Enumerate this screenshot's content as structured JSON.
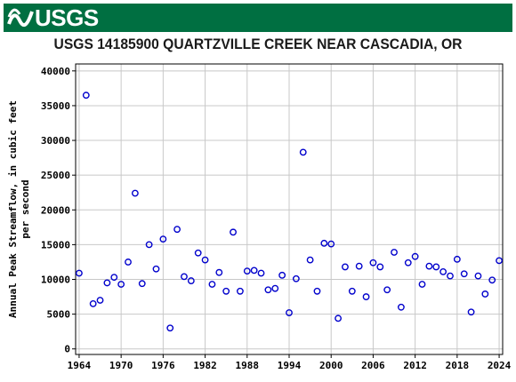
{
  "header": {
    "logo_text": "USGS",
    "logo_icon": "usgs-wave-icon",
    "brand_color": "#006f41"
  },
  "chart_data": {
    "type": "scatter",
    "title": "USGS 14185900 QUARTZVILLE CREEK NEAR CASCADIA, OR",
    "xlabel": "",
    "ylabel_lines": [
      "Annual Peak Streamflow, in cubic feet",
      "per second"
    ],
    "xlim": [
      1963.5,
      2024.5
    ],
    "ylim": [
      -800,
      41000
    ],
    "xticks": [
      1964,
      1970,
      1976,
      1982,
      1988,
      1994,
      2000,
      2006,
      2012,
      2018,
      2024
    ],
    "yticks": [
      0,
      5000,
      10000,
      15000,
      20000,
      25000,
      30000,
      35000,
      40000
    ],
    "grid": true,
    "marker_color": "#0000cc",
    "series": [
      {
        "x": [
          1964,
          1965,
          1966,
          1967,
          1968,
          1969,
          1970,
          1971,
          1972,
          1973,
          1974,
          1975,
          1976,
          1977,
          1978,
          1979,
          1980,
          1981,
          1982,
          1983,
          1984,
          1985,
          1986,
          1987,
          1988,
          1989,
          1990,
          1991,
          1992,
          1993,
          1994,
          1995,
          1996,
          1997,
          1998,
          1999,
          2000,
          2001,
          2002,
          2003,
          2004,
          2005,
          2006,
          2007,
          2008,
          2009,
          2010,
          2011,
          2012,
          2013,
          2014,
          2015,
          2016,
          2017,
          2018,
          2019,
          2020,
          2021,
          2022,
          2023,
          2024
        ],
        "y": [
          10900,
          36500,
          6500,
          7000,
          9500,
          10300,
          9300,
          12500,
          22400,
          9400,
          15000,
          11500,
          15800,
          3000,
          17200,
          10400,
          9800,
          13800,
          12800,
          9300,
          11000,
          8300,
          16800,
          8300,
          11200,
          11300,
          10900,
          8500,
          8700,
          10600,
          5200,
          10100,
          28300,
          12800,
          8300,
          15200,
          15100,
          4400,
          11800,
          8300,
          11900,
          7500,
          12400,
          11800,
          8500,
          13900,
          6000,
          12400,
          13300,
          9300,
          11900,
          11800,
          11100,
          10500,
          12900,
          10800,
          5300,
          10500,
          7900,
          9900,
          12700
        ]
      }
    ]
  }
}
